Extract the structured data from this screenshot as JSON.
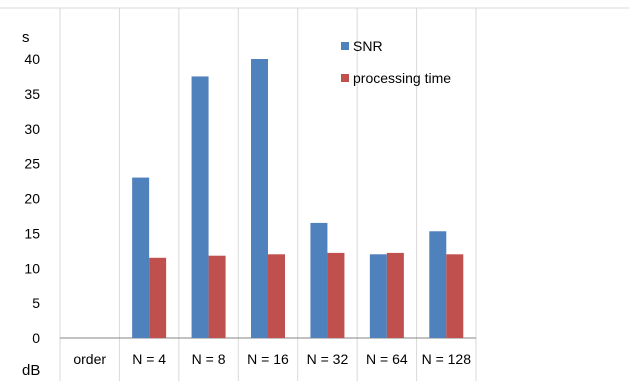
{
  "chart_data": {
    "type": "bar",
    "categories": [
      "order",
      "N = 4",
      "N = 8",
      "N = 16",
      "N = 32",
      "N = 64",
      "N = 128"
    ],
    "series": [
      {
        "name": "SNR",
        "values": [
          null,
          23,
          37.5,
          40,
          16.5,
          12,
          15.3
        ],
        "color": "#4F81BD"
      },
      {
        "name": "processing time",
        "values": [
          null,
          11.5,
          11.8,
          12,
          12.2,
          12.2,
          12
        ],
        "color": "#C0504D"
      }
    ],
    "y_unit_top": "s",
    "y_unit_bottom": "dB",
    "yticks": [
      "0",
      "5",
      "10",
      "15",
      "20",
      "25",
      "30",
      "35",
      "40"
    ],
    "ylim": [
      0,
      45
    ],
    "grid": "vertical",
    "legend": "top-right"
  }
}
